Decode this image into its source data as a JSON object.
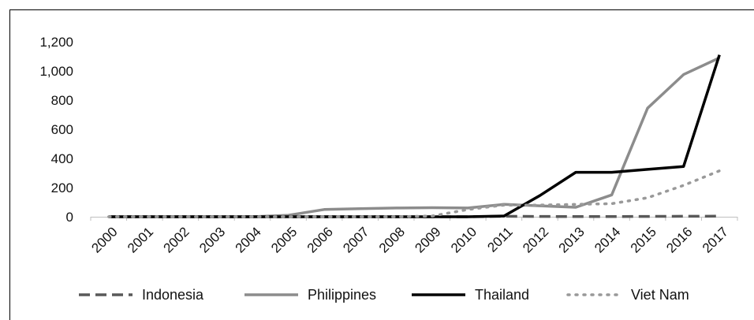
{
  "chart_data": {
    "type": "line",
    "title": "",
    "xlabel": "",
    "ylabel": "",
    "categories": [
      "2000",
      "2001",
      "2002",
      "2003",
      "2004",
      "2005",
      "2006",
      "2007",
      "2008",
      "2009",
      "2010",
      "2011",
      "2012",
      "2013",
      "2014",
      "2015",
      "2016",
      "2017"
    ],
    "ylim": [
      0,
      1200
    ],
    "yticks": [
      0,
      200,
      400,
      600,
      800,
      1000,
      1200
    ],
    "ytick_labels": [
      "0",
      "200",
      "400",
      "600",
      "800",
      "1,000",
      "1,200"
    ],
    "grid": false,
    "legend_position": "bottom",
    "series": [
      {
        "name": "Indonesia",
        "color": "#595959",
        "dash": "dashed",
        "values": [
          0,
          0,
          0,
          0,
          0,
          0,
          0,
          0,
          0,
          0,
          0,
          3,
          2,
          1,
          1,
          2,
          3,
          4
        ]
      },
      {
        "name": "Philippines",
        "color": "#8c8c8c",
        "dash": "solid",
        "values": [
          0,
          0,
          0,
          0,
          0,
          10,
          50,
          55,
          60,
          62,
          60,
          85,
          75,
          65,
          150,
          745,
          975,
          1090
        ]
      },
      {
        "name": "Thailand",
        "color": "#000000",
        "dash": "solid",
        "values": [
          0,
          0,
          0,
          0,
          0,
          0,
          0,
          0,
          0,
          0,
          0,
          5,
          145,
          305,
          305,
          325,
          345,
          1110
        ]
      },
      {
        "name": "Viet Nam",
        "color": "#999999",
        "dash": "dotted",
        "values": [
          0,
          0,
          0,
          0,
          0,
          0,
          0,
          0,
          0,
          5,
          50,
          80,
          80,
          85,
          90,
          130,
          215,
          315
        ]
      }
    ]
  }
}
